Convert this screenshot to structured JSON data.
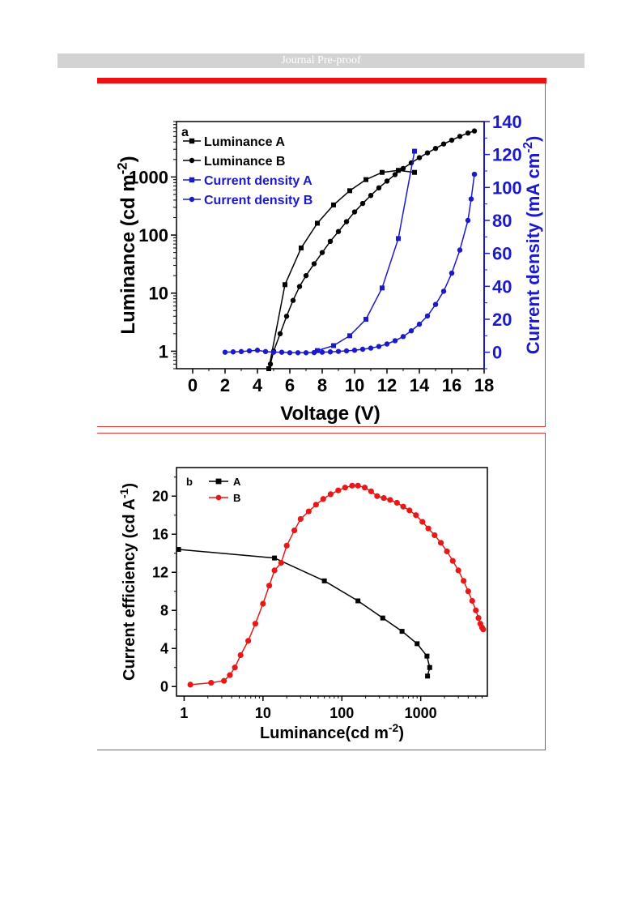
{
  "page": {
    "header": "Journal Pre-proof"
  },
  "chart_data": [
    {
      "type": "line",
      "panel_label": "a",
      "xlabel": "Voltage (V)",
      "ylabel_left": "Luminance (cd m-2)",
      "ylabel_right": "Current density (mA cm-2)",
      "xlim": [
        -1,
        18
      ],
      "ylim_left": [
        0.5,
        9000
      ],
      "yscale_left": "log",
      "ylim_right": [
        -10,
        140
      ],
      "x_ticks": [
        0,
        2,
        4,
        6,
        8,
        10,
        12,
        14,
        16,
        18
      ],
      "y_ticks_left": [
        1,
        10,
        100,
        1000
      ],
      "y_ticks_right": [
        0,
        20,
        40,
        60,
        80,
        100,
        120,
        140
      ],
      "legend_position": "top-left",
      "series": [
        {
          "name": "Luminance A",
          "axis": "left",
          "color": "#000000",
          "marker": "square",
          "x": [
            4.7,
            5.7,
            6.7,
            7.7,
            8.7,
            9.7,
            10.7,
            11.7,
            12.7,
            13.7
          ],
          "y": [
            0.5,
            14,
            60,
            160,
            330,
            580,
            900,
            1200,
            1300,
            1200
          ]
        },
        {
          "name": "Luminance B",
          "axis": "left",
          "color": "#000000",
          "marker": "circle",
          "x": [
            4.8,
            5.0,
            5.4,
            5.8,
            6.2,
            6.6,
            7.0,
            7.5,
            8.0,
            8.5,
            9.0,
            9.5,
            10.0,
            10.5,
            11.0,
            11.5,
            12.0,
            12.5,
            13.0,
            13.5,
            14.0,
            14.5,
            15.0,
            15.5,
            16.0,
            16.5,
            17.0,
            17.4
          ],
          "y": [
            0.6,
            1.0,
            2.0,
            4.0,
            7.5,
            13,
            20,
            32,
            50,
            78,
            115,
            170,
            250,
            350,
            480,
            650,
            850,
            1100,
            1400,
            1750,
            2150,
            2600,
            3100,
            3700,
            4300,
            5000,
            5700,
            6200
          ]
        },
        {
          "name": "Current density A",
          "axis": "right",
          "color": "#1a1acc",
          "marker": "square",
          "x": [
            7.7,
            8.7,
            9.7,
            10.7,
            11.7,
            12.7,
            13.7
          ],
          "y": [
            1,
            4,
            10,
            20,
            39,
            69,
            122
          ]
        },
        {
          "name": "Current density B",
          "axis": "right",
          "color": "#1a1acc",
          "marker": "circle",
          "x": [
            2.0,
            2.5,
            3.0,
            3.5,
            4.0,
            4.5,
            5.0,
            5.5,
            6.0,
            6.5,
            7.0,
            7.5,
            8.0,
            8.5,
            9.0,
            9.5,
            10.0,
            10.5,
            11.0,
            11.5,
            12.0,
            12.5,
            13.0,
            13.5,
            14.0,
            14.5,
            15.0,
            15.5,
            16.0,
            16.5,
            17.0,
            17.2,
            17.4
          ],
          "y": [
            0,
            0.2,
            0.4,
            0.8,
            1.2,
            0.4,
            0,
            0,
            -0.3,
            -0.3,
            -0.3,
            -0.2,
            0,
            0.2,
            0.5,
            0.8,
            1.2,
            1.8,
            2.5,
            3.5,
            5,
            7,
            9.5,
            13,
            17,
            22,
            29,
            37,
            48,
            62,
            80,
            93,
            108
          ]
        }
      ]
    },
    {
      "type": "line",
      "panel_label": "b",
      "xlabel": "Luminance(cd m-2)",
      "ylabel": "Current efficiency (cd A-1)",
      "xscale": "log",
      "xlim": [
        0.8,
        7000
      ],
      "ylim": [
        -1,
        23
      ],
      "x_ticks": [
        1,
        10,
        100,
        1000
      ],
      "y_ticks": [
        0,
        4,
        8,
        12,
        16,
        20
      ],
      "legend_position": "top-left",
      "series": [
        {
          "name": "A",
          "color": "#000000",
          "marker": "square",
          "x": [
            0.85,
            14,
            60,
            160,
            330,
            580,
            900,
            1200,
            1300,
            1220
          ],
          "y": [
            14.4,
            13.5,
            11.1,
            9.0,
            7.2,
            5.8,
            4.5,
            3.2,
            2.0,
            1.1
          ]
        },
        {
          "name": "B",
          "color": "#e81818",
          "marker": "circle",
          "x": [
            1.2,
            2.2,
            3.2,
            3.8,
            4.4,
            5.2,
            6.5,
            8.0,
            10,
            12,
            14,
            17,
            20,
            25,
            30,
            38,
            47,
            58,
            72,
            90,
            110,
            135,
            160,
            195,
            235,
            280,
            340,
            410,
            500,
            600,
            720,
            870,
            1050,
            1250,
            1500,
            1800,
            2150,
            2550,
            3000,
            3500,
            4000,
            4500,
            5000,
            5400,
            5700,
            6000,
            6200
          ],
          "y": [
            0.2,
            0.4,
            0.6,
            1.2,
            2.0,
            3.3,
            4.8,
            6.6,
            8.7,
            10.6,
            12.2,
            13.0,
            14.8,
            16.4,
            17.6,
            18.4,
            19.1,
            19.7,
            20.2,
            20.6,
            20.9,
            21.1,
            21.1,
            20.9,
            20.5,
            20.0,
            19.8,
            19.6,
            19.3,
            18.9,
            18.5,
            18.0,
            17.3,
            16.6,
            15.9,
            15.1,
            14.2,
            13.2,
            12.2,
            11.1,
            10.0,
            9.0,
            8.0,
            7.2,
            6.6,
            6.2,
            6.0
          ]
        }
      ]
    }
  ]
}
